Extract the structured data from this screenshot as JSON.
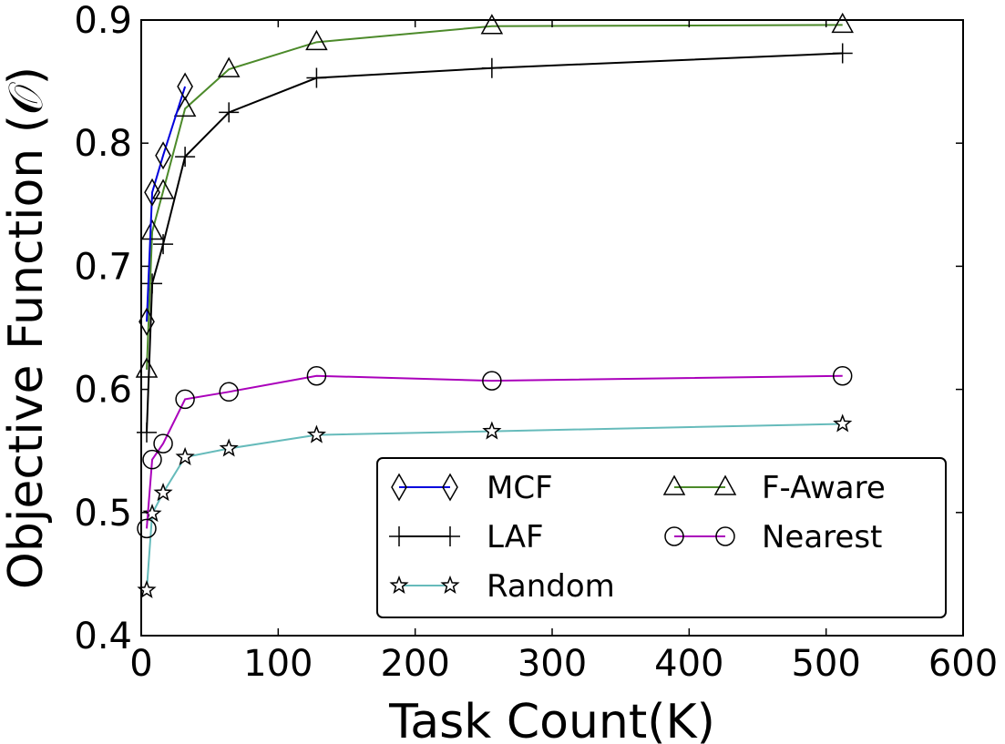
{
  "chart_data": {
    "type": "line",
    "title": "",
    "xlabel": "Task Count(K)",
    "ylabel": "Objective Function (𝒪)",
    "xlim": [
      0,
      600
    ],
    "ylim": [
      0.4,
      0.9
    ],
    "xticks": [
      0,
      100,
      200,
      300,
      400,
      500,
      600
    ],
    "xtick_labels": [
      "0",
      "100",
      "200",
      "300",
      "400",
      "500",
      "600"
    ],
    "yticks": [
      0.4,
      0.5,
      0.6,
      0.7,
      0.8,
      0.9
    ],
    "ytick_labels": [
      "0.4",
      "0.5",
      "0.6",
      "0.7",
      "0.8",
      "0.9"
    ],
    "grid": false,
    "legend_position": "lower-right",
    "series": [
      {
        "name": "MCF",
        "marker": "diamond",
        "color": "#0000dd",
        "x": [
          4,
          8,
          16,
          32
        ],
        "y": [
          0.655,
          0.76,
          0.79,
          0.846
        ]
      },
      {
        "name": "LAF",
        "marker": "plus",
        "color": "#000000",
        "x": [
          4,
          8,
          16,
          32,
          64,
          128,
          256,
          512
        ],
        "y": [
          0.565,
          0.686,
          0.718,
          0.789,
          0.825,
          0.853,
          0.861,
          0.873
        ]
      },
      {
        "name": "Random",
        "marker": "star",
        "color": "#66bbbb",
        "x": [
          4,
          8,
          16,
          32,
          64,
          128,
          256,
          512
        ],
        "y": [
          0.437,
          0.499,
          0.516,
          0.545,
          0.552,
          0.563,
          0.566,
          0.572
        ]
      },
      {
        "name": "F-Aware",
        "marker": "triangle",
        "color": "#4c8a2a",
        "x": [
          4,
          8,
          16,
          32,
          64,
          128,
          256,
          512
        ],
        "y": [
          0.616,
          0.728,
          0.761,
          0.828,
          0.86,
          0.882,
          0.895,
          0.896
        ]
      },
      {
        "name": "Nearest",
        "marker": "circle",
        "color": "#aa00bb",
        "x": [
          4,
          8,
          16,
          32,
          64,
          128,
          256,
          512
        ],
        "y": [
          0.487,
          0.543,
          0.556,
          0.592,
          0.598,
          0.611,
          0.607,
          0.611
        ]
      }
    ]
  }
}
